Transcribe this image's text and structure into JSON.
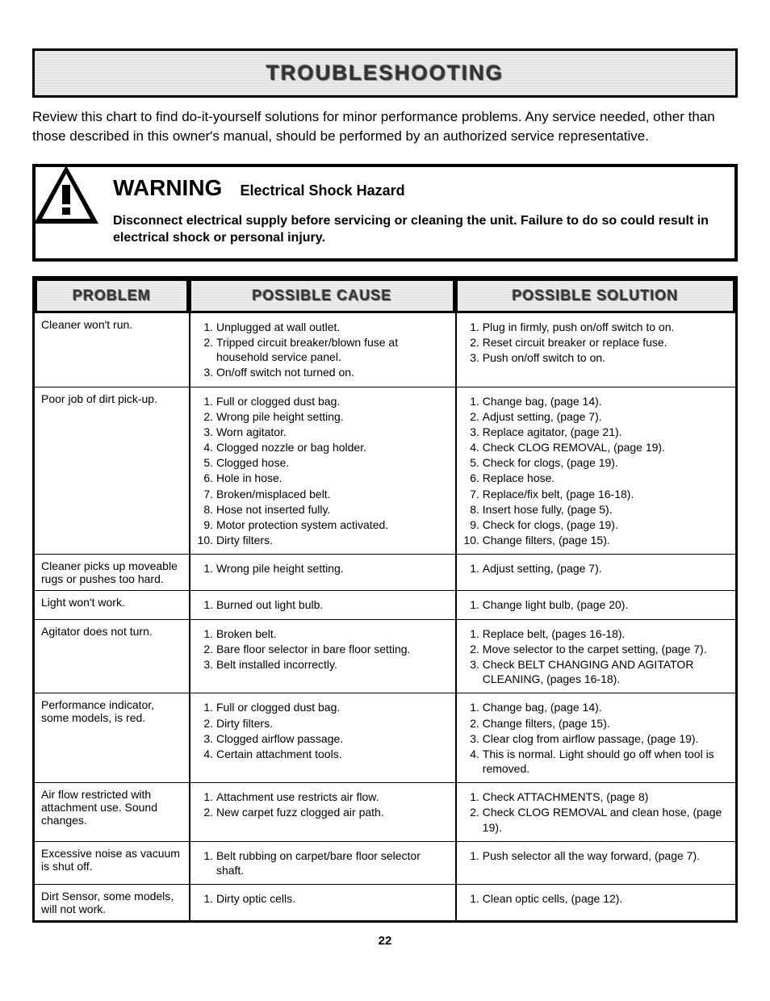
{
  "banner": "TROUBLESHOOTING",
  "intro": "Review this chart to find do-it-yourself solutions for minor performance problems. Any service needed, other than those described in this owner's manual, should be performed by an authorized service representative.",
  "warning": {
    "heading": "WARNING",
    "subheading": "Electrical Shock Hazard",
    "body": "Disconnect electrical supply before servicing or cleaning the unit. Failure to do so could result in electrical shock or personal injury."
  },
  "headers": {
    "problem": "PROBLEM",
    "cause": "POSSIBLE CAUSE",
    "solution": "POSSIBLE SOLUTION"
  },
  "rows": [
    {
      "problem": "Cleaner won't run.",
      "causes": [
        "Unplugged at wall outlet.",
        "Tripped circuit breaker/blown fuse at household service panel.",
        "On/off switch not turned on."
      ],
      "solutions": [
        "Plug in firmly, push on/off switch to on.",
        "Reset circuit breaker or replace fuse.",
        "Push on/off switch to on."
      ]
    },
    {
      "problem": "Poor job of dirt pick-up.",
      "causes": [
        "Full or clogged dust bag.",
        "Wrong pile height setting.",
        "Worn agitator.",
        "Clogged nozzle or bag holder.",
        "Clogged hose.",
        "Hole in hose.",
        "Broken/misplaced belt.",
        "Hose not inserted fully.",
        "Motor protection system activated.",
        "Dirty filters."
      ],
      "solutions": [
        "Change bag, (page 14).",
        "Adjust setting, (page 7).",
        "Replace agitator, (page 21).",
        "Check CLOG REMOVAL, (page 19).",
        "Check for clogs, (page 19).",
        "Replace hose.",
        "Replace/fix belt, (page 16-18).",
        "Insert hose fully, (page 5).",
        "Check for clogs, (page 19).",
        "Change filters, (page 15)."
      ]
    },
    {
      "problem": "Cleaner picks up moveable rugs or pushes too hard.",
      "causes": [
        "Wrong pile height setting."
      ],
      "solutions": [
        "Adjust setting, (page 7)."
      ]
    },
    {
      "problem": "Light won't work.",
      "causes": [
        "Burned out light bulb."
      ],
      "solutions": [
        "Change light bulb, (page 20)."
      ]
    },
    {
      "problem": "Agitator does not turn.",
      "causes": [
        "Broken belt.",
        "Bare floor selector in bare floor setting.",
        "Belt installed incorrectly."
      ],
      "solutions": [
        "Replace belt, (pages 16-18).",
        "Move selector to the carpet setting, (page 7).",
        "Check BELT CHANGING AND AGITATOR CLEANING, (pages 16-18)."
      ]
    },
    {
      "problem": "Performance indicator, some models, is red.",
      "causes": [
        "Full or clogged dust bag.",
        "Dirty filters.",
        "Clogged airflow passage.",
        "Certain attachment tools."
      ],
      "solutions": [
        "Change bag, (page 14).",
        "Change filters, (page 15).",
        "Clear clog from airflow passage, (page 19).",
        "This is normal. Light should go off when tool is removed."
      ]
    },
    {
      "problem": "Air flow restricted with attachment use. Sound changes.",
      "causes": [
        "Attachment use restricts air flow.",
        "New carpet fuzz clogged air path."
      ],
      "solutions": [
        "Check ATTACHMENTS, (page 8)",
        "Check CLOG REMOVAL and clean hose, (page 19)."
      ]
    },
    {
      "problem": "Excessive noise as vacuum is shut off.",
      "causes": [
        "Belt rubbing on carpet/bare floor selector shaft."
      ],
      "solutions": [
        "Push selector all the way forward, (page 7)."
      ]
    },
    {
      "problem": "Dirt Sensor, some models, will not work.",
      "causes": [
        "Dirty optic cells."
      ],
      "solutions": [
        "Clean optic cells, (page 12)."
      ]
    }
  ],
  "page_number": "22"
}
